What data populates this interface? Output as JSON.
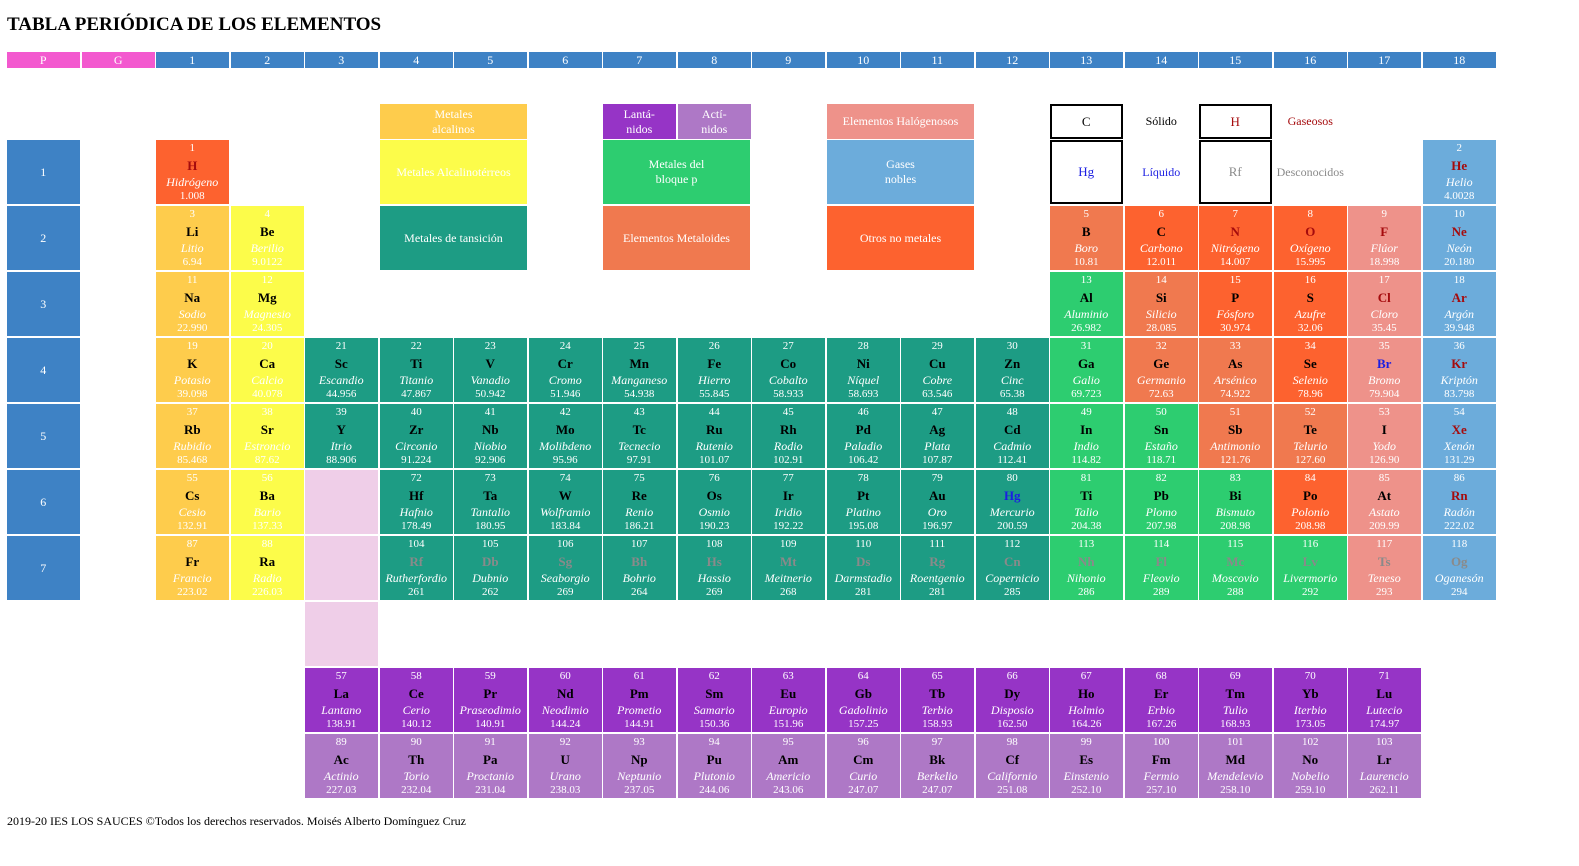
{
  "page": {
    "title": "TABLA PERIÓDICA DE LOS ELEMENTOS",
    "footer": "2019-20 IES LOS SAUCES ©Todos los derechos reservados. Moisés Alberto Domínguez Cruz"
  },
  "colors": {
    "header_blue": "#3e82c5",
    "header_pink": "#f359cf",
    "alkali": "#fecc4c",
    "alkaline_earth": "#fcfc4a",
    "transition": "#1d9c84",
    "lanthanide": "#9634c6",
    "actinide": "#ae78c6",
    "p_block": "#2dcd70",
    "metalloid": "#f0794f",
    "other_nonmetal": "#fd622f",
    "halogen": "#ee928a",
    "noble_gas": "#6cacdb",
    "spacer": "#efcee8",
    "liquid_symbol": "#1b1ee2",
    "gas_symbol": "#a50b0d",
    "unknown_symbol": "#8a8a8a",
    "solid_symbol": "#000000"
  },
  "group_headers": [
    "P",
    "G",
    "1",
    "2",
    "3",
    "4",
    "5",
    "6",
    "7",
    "8",
    "9",
    "10",
    "11",
    "12",
    "13",
    "14",
    "15",
    "16",
    "17",
    "18"
  ],
  "periods": [
    "1",
    "2",
    "3",
    "4",
    "5",
    "6",
    "7"
  ],
  "legend": {
    "alkali": "Metales\nalcalinos",
    "alkaline_earth": "Metales Alcalinotérreos",
    "transition": "Metales de tansición",
    "lanthanide": "Lantá-\nnidos",
    "actinide": "Actí-\nnidos",
    "p_block": "Metales del\nbloque p",
    "metalloid": "Elementos Metaloides",
    "halogen": "Elementos Halógenosos",
    "noble_gas": "Gases\nnobles",
    "other_nonmetal": "Otros no metales",
    "state_solid_symbol": "C",
    "state_solid_label": "Sólido",
    "state_gas_symbol": "H",
    "state_gas_label": "Gaseosos",
    "state_liquid_symbol": "Hg",
    "state_liquid_label": "Líquido",
    "state_unknown_symbol": "Rf",
    "state_unknown_label": "Desconocidos"
  },
  "elements": [
    {
      "n": "1",
      "s": "H",
      "name": "Hidrógeno",
      "w": "1.008",
      "cat": "other_nonmetal",
      "state": "gas"
    },
    {
      "n": "2",
      "s": "He",
      "name": "Helio",
      "w": "4.0028",
      "cat": "noble_gas",
      "state": "gas"
    },
    {
      "n": "3",
      "s": "Li",
      "name": "Litio",
      "w": "6.94",
      "cat": "alkali",
      "state": "solid"
    },
    {
      "n": "4",
      "s": "Be",
      "name": "Berilio",
      "w": "9.0122",
      "cat": "alkaline_earth",
      "state": "solid"
    },
    {
      "n": "5",
      "s": "B",
      "name": "Boro",
      "w": "10.81",
      "cat": "metalloid",
      "state": "solid"
    },
    {
      "n": "6",
      "s": "C",
      "name": "Carbono",
      "w": "12.011",
      "cat": "other_nonmetal",
      "state": "solid"
    },
    {
      "n": "7",
      "s": "N",
      "name": "Nitrógeno",
      "w": "14.007",
      "cat": "other_nonmetal",
      "state": "gas"
    },
    {
      "n": "8",
      "s": "O",
      "name": "Oxígeno",
      "w": "15.995",
      "cat": "other_nonmetal",
      "state": "gas"
    },
    {
      "n": "9",
      "s": "F",
      "name": "Flúor",
      "w": "18.998",
      "cat": "halogen",
      "state": "gas"
    },
    {
      "n": "10",
      "s": "Ne",
      "name": "Neón",
      "w": "20.180",
      "cat": "noble_gas",
      "state": "gas"
    },
    {
      "n": "11",
      "s": "Na",
      "name": "Sodio",
      "w": "22.990",
      "cat": "alkali",
      "state": "solid"
    },
    {
      "n": "12",
      "s": "Mg",
      "name": "Magnesio",
      "w": "24.305",
      "cat": "alkaline_earth",
      "state": "solid"
    },
    {
      "n": "13",
      "s": "Al",
      "name": "Aluminio",
      "w": "26.982",
      "cat": "p_block",
      "state": "solid"
    },
    {
      "n": "14",
      "s": "Si",
      "name": "Silicio",
      "w": "28.085",
      "cat": "metalloid",
      "state": "solid"
    },
    {
      "n": "15",
      "s": "P",
      "name": "Fósforo",
      "w": "30.974",
      "cat": "other_nonmetal",
      "state": "solid"
    },
    {
      "n": "16",
      "s": "S",
      "name": "Azufre",
      "w": "32.06",
      "cat": "other_nonmetal",
      "state": "solid"
    },
    {
      "n": "17",
      "s": "Cl",
      "name": "Cloro",
      "w": "35.45",
      "cat": "halogen",
      "state": "gas"
    },
    {
      "n": "18",
      "s": "Ar",
      "name": "Argón",
      "w": "39.948",
      "cat": "noble_gas",
      "state": "gas"
    },
    {
      "n": "19",
      "s": "K",
      "name": "Potasio",
      "w": "39.098",
      "cat": "alkali",
      "state": "solid"
    },
    {
      "n": "20",
      "s": "Ca",
      "name": "Calcio",
      "w": "40.078",
      "cat": "alkaline_earth",
      "state": "solid"
    },
    {
      "n": "21",
      "s": "Sc",
      "name": "Escandio",
      "w": "44.956",
      "cat": "transition",
      "state": "solid"
    },
    {
      "n": "22",
      "s": "Ti",
      "name": "Titanio",
      "w": "47.867",
      "cat": "transition",
      "state": "solid"
    },
    {
      "n": "23",
      "s": "V",
      "name": "Vanadio",
      "w": "50.942",
      "cat": "transition",
      "state": "solid"
    },
    {
      "n": "24",
      "s": "Cr",
      "name": "Cromo",
      "w": "51.946",
      "cat": "transition",
      "state": "solid"
    },
    {
      "n": "25",
      "s": "Mn",
      "name": "Manganeso",
      "w": "54.938",
      "cat": "transition",
      "state": "solid"
    },
    {
      "n": "26",
      "s": "Fe",
      "name": "Hierro",
      "w": "55.845",
      "cat": "transition",
      "state": "solid"
    },
    {
      "n": "27",
      "s": "Co",
      "name": "Cobalto",
      "w": "58.933",
      "cat": "transition",
      "state": "solid"
    },
    {
      "n": "28",
      "s": "Ni",
      "name": "Níquel",
      "w": "58.693",
      "cat": "transition",
      "state": "solid"
    },
    {
      "n": "29",
      "s": "Cu",
      "name": "Cobre",
      "w": "63.546",
      "cat": "transition",
      "state": "solid"
    },
    {
      "n": "30",
      "s": "Zn",
      "name": "Cinc",
      "w": "65.38",
      "cat": "transition",
      "state": "solid"
    },
    {
      "n": "31",
      "s": "Ga",
      "name": "Galio",
      "w": "69.723",
      "cat": "p_block",
      "state": "solid"
    },
    {
      "n": "32",
      "s": "Ge",
      "name": "Germanio",
      "w": "72.63",
      "cat": "metalloid",
      "state": "solid"
    },
    {
      "n": "33",
      "s": "As",
      "name": "Arsénico",
      "w": "74.922",
      "cat": "metalloid",
      "state": "solid"
    },
    {
      "n": "34",
      "s": "Se",
      "name": "Selenio",
      "w": "78.96",
      "cat": "other_nonmetal",
      "state": "solid"
    },
    {
      "n": "35",
      "s": "Br",
      "name": "Bromo",
      "w": "79.904",
      "cat": "halogen",
      "state": "liquid"
    },
    {
      "n": "36",
      "s": "Kr",
      "name": "Kriptón",
      "w": "83.798",
      "cat": "noble_gas",
      "state": "gas"
    },
    {
      "n": "37",
      "s": "Rb",
      "name": "Rubidio",
      "w": "85.468",
      "cat": "alkali",
      "state": "solid"
    },
    {
      "n": "38",
      "s": "Sr",
      "name": "Estroncio",
      "w": "87.62",
      "cat": "alkaline_earth",
      "state": "solid"
    },
    {
      "n": "39",
      "s": "Y",
      "name": "Itrio",
      "w": "88.906",
      "cat": "transition",
      "state": "solid"
    },
    {
      "n": "40",
      "s": "Zr",
      "name": "Circonio",
      "w": "91.224",
      "cat": "transition",
      "state": "solid"
    },
    {
      "n": "41",
      "s": "Nb",
      "name": "Niobio",
      "w": "92.906",
      "cat": "transition",
      "state": "solid"
    },
    {
      "n": "42",
      "s": "Mo",
      "name": "Molibdeno",
      "w": "95.96",
      "cat": "transition",
      "state": "solid"
    },
    {
      "n": "43",
      "s": "Tc",
      "name": "Tecnecio",
      "w": "97.91",
      "cat": "transition",
      "state": "solid"
    },
    {
      "n": "44",
      "s": "Ru",
      "name": "Rutenio",
      "w": "101.07",
      "cat": "transition",
      "state": "solid"
    },
    {
      "n": "45",
      "s": "Rh",
      "name": "Rodio",
      "w": "102.91",
      "cat": "transition",
      "state": "solid"
    },
    {
      "n": "46",
      "s": "Pd",
      "name": "Paladio",
      "w": "106.42",
      "cat": "transition",
      "state": "solid"
    },
    {
      "n": "47",
      "s": "Ag",
      "name": "Plata",
      "w": "107.87",
      "cat": "transition",
      "state": "solid"
    },
    {
      "n": "48",
      "s": "Cd",
      "name": "Cadmio",
      "w": "112.41",
      "cat": "transition",
      "state": "solid"
    },
    {
      "n": "49",
      "s": "In",
      "name": "Indio",
      "w": "114.82",
      "cat": "p_block",
      "state": "solid"
    },
    {
      "n": "50",
      "s": "Sn",
      "name": "Estaño",
      "w": "118.71",
      "cat": "p_block",
      "state": "solid"
    },
    {
      "n": "51",
      "s": "Sb",
      "name": "Antimonio",
      "w": "121.76",
      "cat": "metalloid",
      "state": "solid"
    },
    {
      "n": "52",
      "s": "Te",
      "name": "Telurio",
      "w": "127.60",
      "cat": "metalloid",
      "state": "solid"
    },
    {
      "n": "53",
      "s": "I",
      "name": "Yodo",
      "w": "126.90",
      "cat": "halogen",
      "state": "solid"
    },
    {
      "n": "54",
      "s": "Xe",
      "name": "Xenón",
      "w": "131.29",
      "cat": "noble_gas",
      "state": "gas"
    },
    {
      "n": "55",
      "s": "Cs",
      "name": "Cesio",
      "w": "132.91",
      "cat": "alkali",
      "state": "solid"
    },
    {
      "n": "56",
      "s": "Ba",
      "name": "Bario",
      "w": "137.33",
      "cat": "alkaline_earth",
      "state": "solid"
    },
    {
      "n": "72",
      "s": "Hf",
      "name": "Hafnio",
      "w": "178.49",
      "cat": "transition",
      "state": "solid"
    },
    {
      "n": "73",
      "s": "Ta",
      "name": "Tantalio",
      "w": "180.95",
      "cat": "transition",
      "state": "solid"
    },
    {
      "n": "74",
      "s": "W",
      "name": "Wolframio",
      "w": "183.84",
      "cat": "transition",
      "state": "solid"
    },
    {
      "n": "75",
      "s": "Re",
      "name": "Renio",
      "w": "186.21",
      "cat": "transition",
      "state": "solid"
    },
    {
      "n": "76",
      "s": "Os",
      "name": "Osmio",
      "w": "190.23",
      "cat": "transition",
      "state": "solid"
    },
    {
      "n": "77",
      "s": "Ir",
      "name": "Iridio",
      "w": "192.22",
      "cat": "transition",
      "state": "solid"
    },
    {
      "n": "78",
      "s": "Pt",
      "name": "Platino",
      "w": "195.08",
      "cat": "transition",
      "state": "solid"
    },
    {
      "n": "79",
      "s": "Au",
      "name": "Oro",
      "w": "196.97",
      "cat": "transition",
      "state": "solid"
    },
    {
      "n": "80",
      "s": "Hg",
      "name": "Mercurio",
      "w": "200.59",
      "cat": "transition",
      "state": "liquid"
    },
    {
      "n": "81",
      "s": "Ti",
      "name": "Talio",
      "w": "204.38",
      "cat": "p_block",
      "state": "solid"
    },
    {
      "n": "82",
      "s": "Pb",
      "name": "Plomo",
      "w": "207.98",
      "cat": "p_block",
      "state": "solid"
    },
    {
      "n": "83",
      "s": "Bi",
      "name": "Bismuto",
      "w": "208.98",
      "cat": "p_block",
      "state": "solid"
    },
    {
      "n": "84",
      "s": "Po",
      "name": "Polonio",
      "w": "208.98",
      "cat": "other_nonmetal",
      "state": "solid"
    },
    {
      "n": "85",
      "s": "At",
      "name": "Astato",
      "w": "209.99",
      "cat": "halogen",
      "state": "solid"
    },
    {
      "n": "86",
      "s": "Rn",
      "name": "Radón",
      "w": "222.02",
      "cat": "noble_gas",
      "state": "gas"
    },
    {
      "n": "87",
      "s": "Fr",
      "name": "Francio",
      "w": "223.02",
      "cat": "alkali",
      "state": "solid"
    },
    {
      "n": "88",
      "s": "Ra",
      "name": "Radio",
      "w": "226.03",
      "cat": "alkaline_earth",
      "state": "solid"
    },
    {
      "n": "104",
      "s": "Rf",
      "name": "Rutherfordio",
      "w": "261",
      "cat": "transition",
      "state": "unknown"
    },
    {
      "n": "105",
      "s": "Db",
      "name": "Dubnio",
      "w": "262",
      "cat": "transition",
      "state": "unknown"
    },
    {
      "n": "106",
      "s": "Sg",
      "name": "Seaborgio",
      "w": "269",
      "cat": "transition",
      "state": "unknown"
    },
    {
      "n": "107",
      "s": "Bh",
      "name": "Bohrio",
      "w": "264",
      "cat": "transition",
      "state": "unknown"
    },
    {
      "n": "108",
      "s": "Hs",
      "name": "Hassio",
      "w": "269",
      "cat": "transition",
      "state": "unknown"
    },
    {
      "n": "109",
      "s": "Mt",
      "name": "Meitnerio",
      "w": "268",
      "cat": "transition",
      "state": "unknown"
    },
    {
      "n": "110",
      "s": "Ds",
      "name": "Darmstadio",
      "w": "281",
      "cat": "transition",
      "state": "unknown"
    },
    {
      "n": "111",
      "s": "Rg",
      "name": "Roentgenio",
      "w": "281",
      "cat": "transition",
      "state": "unknown"
    },
    {
      "n": "112",
      "s": "Cn",
      "name": "Copernicio",
      "w": "285",
      "cat": "transition",
      "state": "unknown"
    },
    {
      "n": "113",
      "s": "Nh",
      "name": "Nihonio",
      "w": "286",
      "cat": "p_block",
      "state": "unknown"
    },
    {
      "n": "114",
      "s": "Fl",
      "name": "Fleovio",
      "w": "289",
      "cat": "p_block",
      "state": "unknown"
    },
    {
      "n": "115",
      "s": "Mc",
      "name": "Moscovio",
      "w": "288",
      "cat": "p_block",
      "state": "unknown"
    },
    {
      "n": "116",
      "s": "Lv",
      "name": "Livermorio",
      "w": "292",
      "cat": "p_block",
      "state": "unknown"
    },
    {
      "n": "117",
      "s": "Ts",
      "name": "Teneso",
      "w": "293",
      "cat": "halogen",
      "state": "unknown"
    },
    {
      "n": "118",
      "s": "Og",
      "name": "Oganesón",
      "w": "294",
      "cat": "noble_gas",
      "state": "unknown"
    },
    {
      "n": "57",
      "s": "La",
      "name": "Lantano",
      "w": "138.91",
      "cat": "lanthanide",
      "state": "solid"
    },
    {
      "n": "58",
      "s": "Ce",
      "name": "Cerio",
      "w": "140.12",
      "cat": "lanthanide",
      "state": "solid"
    },
    {
      "n": "59",
      "s": "Pr",
      "name": "Praseodimio",
      "w": "140.91",
      "cat": "lanthanide",
      "state": "solid"
    },
    {
      "n": "60",
      "s": "Nd",
      "name": "Neodimio",
      "w": "144.24",
      "cat": "lanthanide",
      "state": "solid"
    },
    {
      "n": "61",
      "s": "Pm",
      "name": "Prometio",
      "w": "144.91",
      "cat": "lanthanide",
      "state": "solid"
    },
    {
      "n": "62",
      "s": "Sm",
      "name": "Samario",
      "w": "150.36",
      "cat": "lanthanide",
      "state": "solid"
    },
    {
      "n": "63",
      "s": "Eu",
      "name": "Europio",
      "w": "151.96",
      "cat": "lanthanide",
      "state": "solid"
    },
    {
      "n": "64",
      "s": "Gb",
      "name": "Gadolinio",
      "w": "157.25",
      "cat": "lanthanide",
      "state": "solid"
    },
    {
      "n": "65",
      "s": "Tb",
      "name": "Terbio",
      "w": "158.93",
      "cat": "lanthanide",
      "state": "solid"
    },
    {
      "n": "66",
      "s": "Dy",
      "name": "Disposio",
      "w": "162.50",
      "cat": "lanthanide",
      "state": "solid"
    },
    {
      "n": "67",
      "s": "Ho",
      "name": "Holmio",
      "w": "164.26",
      "cat": "lanthanide",
      "state": "solid"
    },
    {
      "n": "68",
      "s": "Er",
      "name": "Erbio",
      "w": "167.26",
      "cat": "lanthanide",
      "state": "solid"
    },
    {
      "n": "69",
      "s": "Tm",
      "name": "Tulio",
      "w": "168.93",
      "cat": "lanthanide",
      "state": "solid"
    },
    {
      "n": "70",
      "s": "Yb",
      "name": "Iterbio",
      "w": "173.05",
      "cat": "lanthanide",
      "state": "solid"
    },
    {
      "n": "71",
      "s": "Lu",
      "name": "Lutecio",
      "w": "174.97",
      "cat": "lanthanide",
      "state": "solid"
    },
    {
      "n": "89",
      "s": "Ac",
      "name": "Actinio",
      "w": "227.03",
      "cat": "actinide",
      "state": "solid"
    },
    {
      "n": "90",
      "s": "Th",
      "name": "Torio",
      "w": "232.04",
      "cat": "actinide",
      "state": "solid"
    },
    {
      "n": "91",
      "s": "Pa",
      "name": "Proctanio",
      "w": "231.04",
      "cat": "actinide",
      "state": "solid"
    },
    {
      "n": "92",
      "s": "U",
      "name": "Urano",
      "w": "238.03",
      "cat": "actinide",
      "state": "solid"
    },
    {
      "n": "93",
      "s": "Np",
      "name": "Neptunio",
      "w": "237.05",
      "cat": "actinide",
      "state": "solid"
    },
    {
      "n": "94",
      "s": "Pu",
      "name": "Plutonio",
      "w": "244.06",
      "cat": "actinide",
      "state": "solid"
    },
    {
      "n": "95",
      "s": "Am",
      "name": "Americio",
      "w": "243.06",
      "cat": "actinide",
      "state": "solid"
    },
    {
      "n": "96",
      "s": "Cm",
      "name": "Curio",
      "w": "247.07",
      "cat": "actinide",
      "state": "solid"
    },
    {
      "n": "97",
      "s": "Bk",
      "name": "Berkelio",
      "w": "247.07",
      "cat": "actinide",
      "state": "solid"
    },
    {
      "n": "98",
      "s": "Cf",
      "name": "Californio",
      "w": "251.08",
      "cat": "actinide",
      "state": "solid"
    },
    {
      "n": "99",
      "s": "Es",
      "name": "Einstenio",
      "w": "252.10",
      "cat": "actinide",
      "state": "solid"
    },
    {
      "n": "100",
      "s": "Fm",
      "name": "Fermio",
      "w": "257.10",
      "cat": "actinide",
      "state": "solid"
    },
    {
      "n": "101",
      "s": "Md",
      "name": "Mendelevio",
      "w": "258.10",
      "cat": "actinide",
      "state": "solid"
    },
    {
      "n": "102",
      "s": "No",
      "name": "Nobelio",
      "w": "259.10",
      "cat": "actinide",
      "state": "solid"
    },
    {
      "n": "103",
      "s": "Lr",
      "name": "Laurencio",
      "w": "262.11",
      "cat": "actinide",
      "state": "solid"
    }
  ]
}
